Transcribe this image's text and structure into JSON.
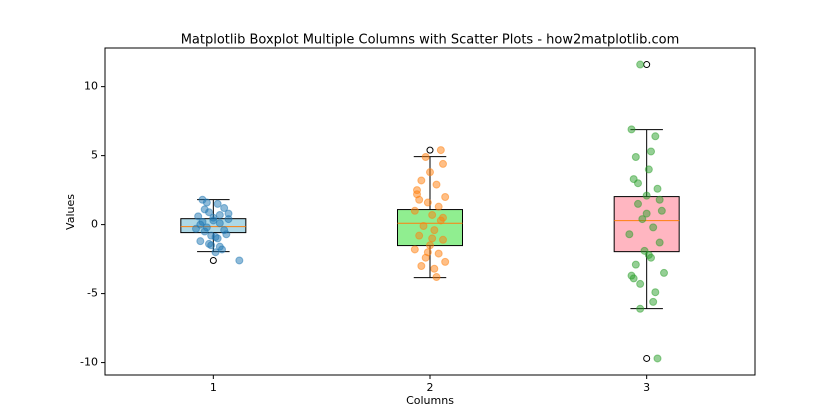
{
  "chart_data": {
    "type": "box",
    "title": "Matplotlib Boxplot Multiple Columns with Scatter Plots - how2matplotlib.com",
    "xlabel": "Columns",
    "ylabel": "Values",
    "xlim": [
      0.5,
      3.5
    ],
    "ylim": [
      -10.9,
      12.8
    ],
    "xticks": [
      1,
      2,
      3
    ],
    "yticks": [
      -10,
      -5,
      0,
      5,
      10
    ],
    "median_color": "#ff7f0e",
    "boxes": [
      {
        "position": 1,
        "color": "#add8e6",
        "whisker_low": -1.96,
        "q1": -0.58,
        "median": -0.15,
        "q3": 0.43,
        "whisker_high": 1.81,
        "outliers": [
          -2.6
        ]
      },
      {
        "position": 2,
        "color": "#90ee90",
        "whisker_low": -3.84,
        "q1": -1.52,
        "median": 0.1,
        "q3": 1.09,
        "whisker_high": 4.93,
        "outliers": [
          5.4
        ]
      },
      {
        "position": 3,
        "color": "#ffb6c1",
        "whisker_low": -6.09,
        "q1": -1.96,
        "median": 0.29,
        "q3": 2.03,
        "whisker_high": 6.88,
        "outliers": [
          11.6,
          -9.7
        ]
      }
    ],
    "scatter": [
      {
        "color": "#1f77b4",
        "x": [
          0.95,
          1.02,
          0.98,
          1.05,
          0.93,
          1.0,
          1.07,
          0.97,
          1.03,
          0.96,
          1.01,
          0.94,
          1.06,
          0.99,
          1.04,
          0.92,
          1.0,
          1.12,
          0.97,
          1.02,
          0.95,
          1.05,
          0.98,
          1.03,
          0.96,
          1.01,
          0.94,
          1.07,
          0.99,
          1.03
        ],
        "y": [
          1.8,
          1.5,
          0.9,
          1.2,
          0.6,
          0.3,
          0.8,
          -0.2,
          0.1,
          -0.5,
          -0.9,
          -1.2,
          -0.7,
          -1.5,
          -1.8,
          -0.3,
          0.5,
          -2.6,
          1.6,
          -1.0,
          0.2,
          -0.4,
          -1.4,
          0.7,
          1.1,
          -2.0,
          0.0,
          0.4,
          -0.8,
          -1.6
        ]
      },
      {
        "color": "#ff7f0e",
        "x": [
          2.05,
          1.98,
          2.06,
          2.0,
          1.96,
          2.03,
          1.94,
          2.07,
          1.99,
          2.04,
          1.93,
          2.01,
          2.05,
          1.97,
          2.02,
          1.95,
          2.06,
          2.0,
          1.93,
          2.04,
          1.98,
          2.07,
          1.96,
          2.02,
          2.03,
          1.95,
          2.06,
          1.99,
          1.94,
          2.01
        ],
        "y": [
          5.4,
          4.9,
          4.4,
          3.8,
          3.2,
          2.9,
          2.5,
          2.0,
          1.6,
          1.3,
          1.0,
          0.7,
          0.3,
          -0.1,
          -0.4,
          -0.8,
          -1.1,
          -1.5,
          -1.8,
          -2.1,
          -2.4,
          -2.7,
          -3.0,
          -3.2,
          -3.8,
          1.8,
          0.5,
          -2.0,
          2.2,
          -1.0
        ]
      },
      {
        "color": "#2ca02c",
        "x": [
          2.97,
          2.93,
          3.04,
          3.02,
          2.95,
          3.01,
          2.94,
          3.05,
          3.0,
          2.96,
          3.07,
          2.98,
          3.03,
          2.92,
          3.06,
          2.99,
          3.02,
          2.95,
          3.08,
          2.94,
          2.97,
          3.04,
          3.03,
          2.97,
          3.05,
          2.96,
          3.01,
          3.06,
          2.93,
          3.0
        ],
        "y": [
          11.6,
          6.9,
          6.4,
          5.3,
          4.9,
          4.0,
          3.3,
          2.6,
          2.1,
          1.5,
          1.0,
          0.4,
          -0.2,
          -0.7,
          -1.3,
          -1.9,
          -2.4,
          -2.9,
          -3.5,
          -3.9,
          -4.3,
          -4.9,
          -5.6,
          -6.1,
          -9.7,
          3.0,
          -2.2,
          1.8,
          -3.7,
          0.8
        ]
      }
    ]
  }
}
